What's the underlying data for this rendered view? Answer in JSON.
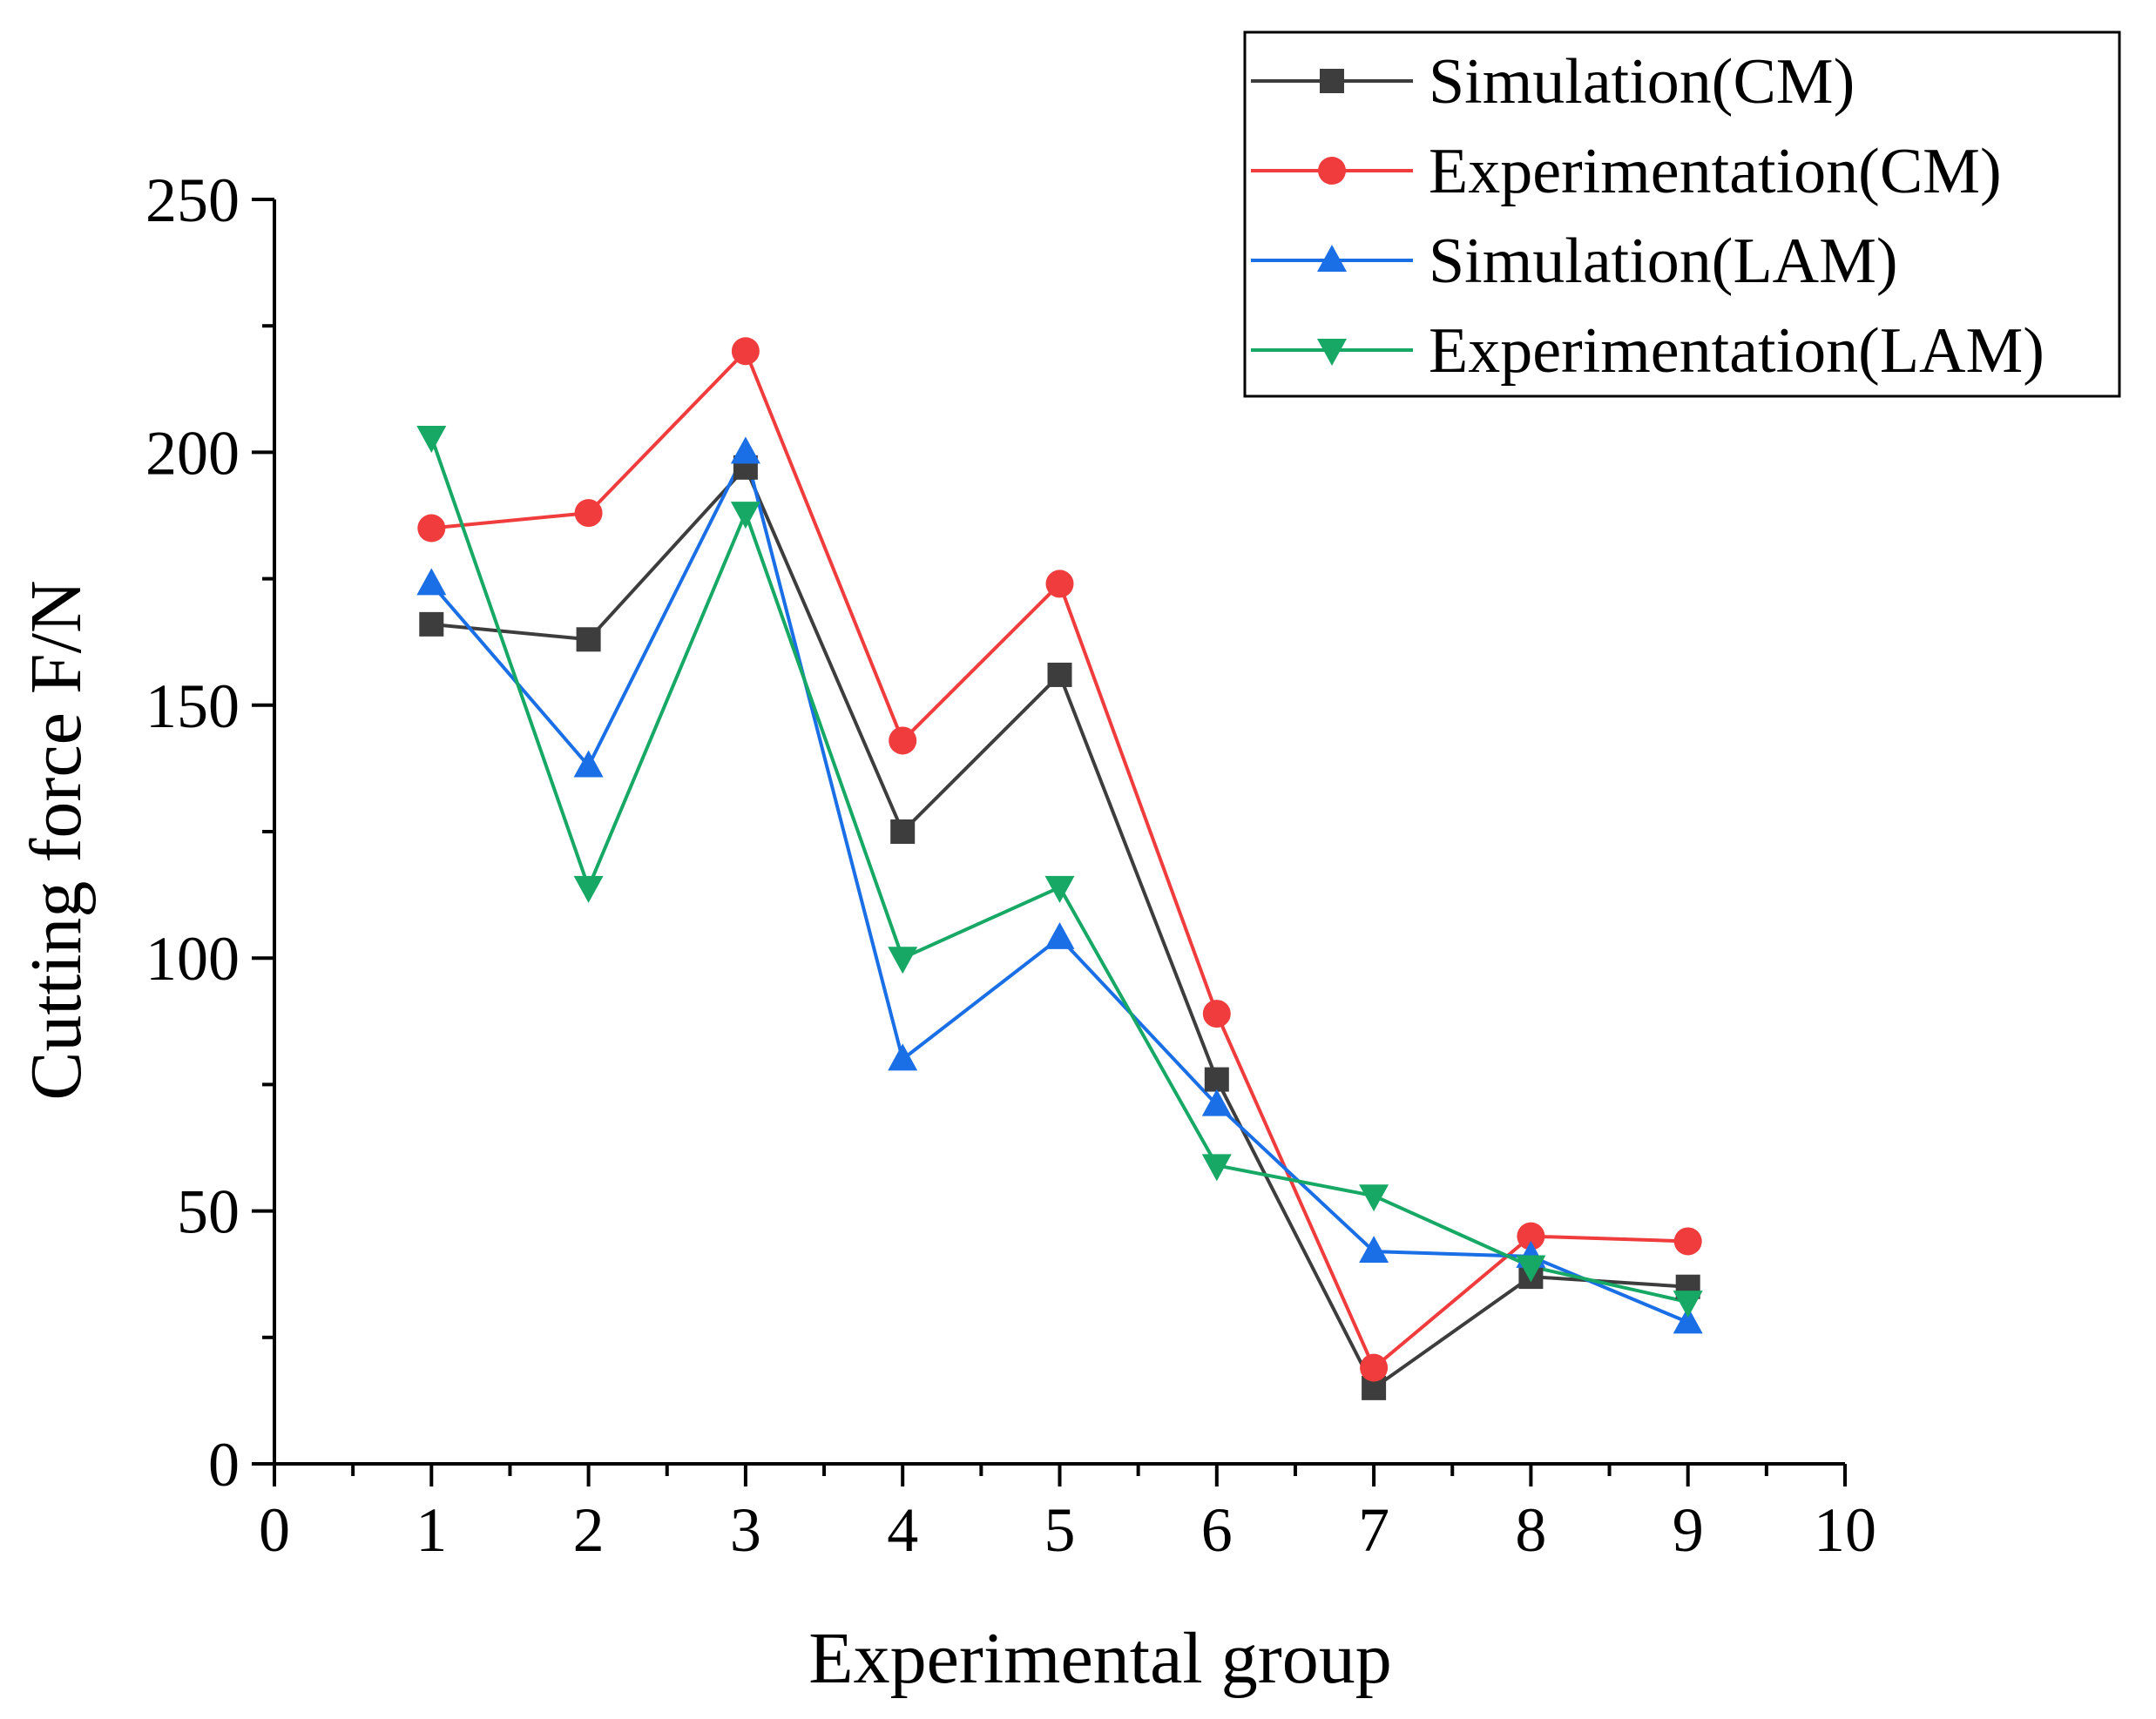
{
  "chart_data": {
    "type": "line",
    "xlabel": "Experimental group",
    "ylabel": "Cutting force F/N",
    "xlim": [
      0,
      10
    ],
    "ylim": [
      0,
      250
    ],
    "x_ticks": [
      0,
      1,
      2,
      3,
      4,
      5,
      6,
      7,
      8,
      9,
      10
    ],
    "y_ticks": [
      0,
      50,
      100,
      150,
      200,
      250
    ],
    "x_tick_labels": [
      "0",
      "1",
      "2",
      "3",
      "4",
      "5",
      "6",
      "7",
      "8",
      "9",
      "10"
    ],
    "y_tick_labels": [
      "0",
      "50",
      "100",
      "150",
      "200",
      "250"
    ],
    "legend_position": "top-right",
    "x": [
      1,
      2,
      3,
      4,
      5,
      6,
      7,
      8,
      9
    ],
    "series": [
      {
        "name": "Simulation(CM)",
        "color": "#3d3d3d",
        "marker": "square",
        "values": [
          166,
          163,
          197,
          125,
          156,
          76,
          15,
          37,
          35
        ]
      },
      {
        "name": "Experimentation(CM)",
        "color": "#f03c3c",
        "marker": "circle",
        "values": [
          185,
          188,
          220,
          143,
          174,
          89,
          19,
          45,
          44
        ]
      },
      {
        "name": "Simulation(LAM)",
        "color": "#1b6fe6",
        "marker": "triangle-up",
        "values": [
          174,
          138,
          200,
          80,
          104,
          71,
          42,
          41,
          28
        ]
      },
      {
        "name": "Experimentation(LAM)",
        "color": "#16a864",
        "marker": "triangle-down",
        "values": [
          203,
          114,
          188,
          100,
          114,
          59,
          53,
          39,
          32
        ]
      }
    ]
  }
}
